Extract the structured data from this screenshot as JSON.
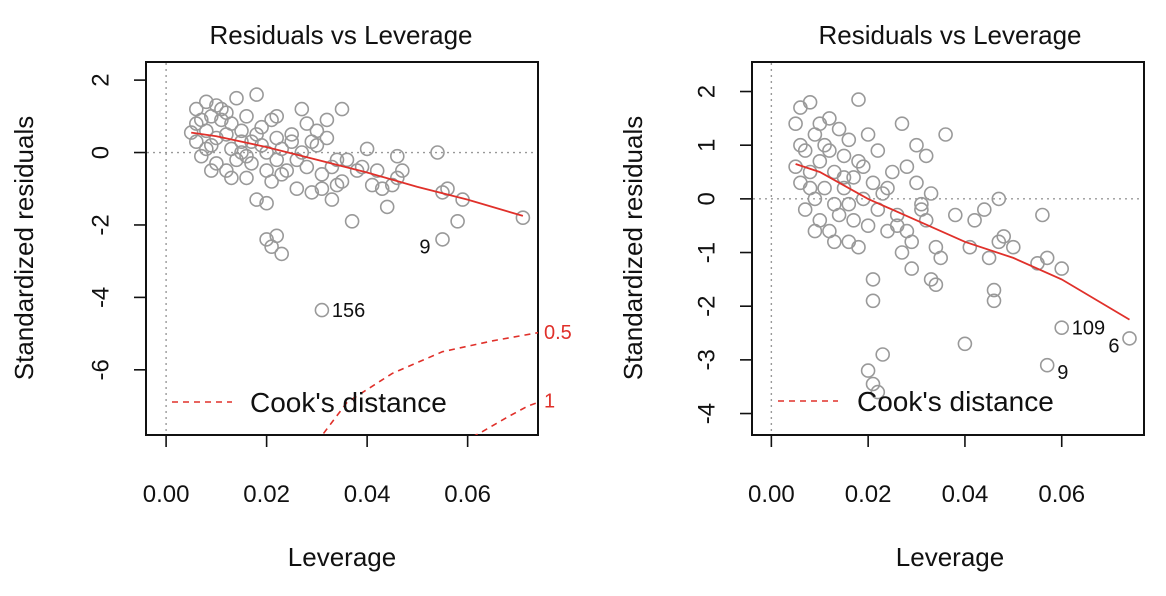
{
  "chart_data": [
    {
      "type": "scatter",
      "title": "Residuals vs Leverage",
      "xlabel": "Leverage",
      "ylabel": "Standardized residuals",
      "xlim": [
        -0.004,
        0.074
      ],
      "ylim": [
        -7.8,
        2.5
      ],
      "xticks": [
        "0.00",
        "0.02",
        "0.04",
        "0.06"
      ],
      "xtick_values": [
        0,
        0.02,
        0.04,
        0.06
      ],
      "yticks": [
        "2",
        "0",
        "-2",
        "-4",
        "-6"
      ],
      "ytick_values": [
        2,
        0,
        -2,
        -4,
        -6
      ],
      "legend": {
        "label": "Cook's distance",
        "position": "bottom-left"
      },
      "colors": {
        "points": "#999999",
        "smooth": "#e0302a",
        "cook": "#e0302a",
        "reference": "#999999",
        "axis": "#111111"
      },
      "points": [
        [
          0.005,
          0.55
        ],
        [
          0.006,
          0.3
        ],
        [
          0.006,
          1.2
        ],
        [
          0.007,
          0.9
        ],
        [
          0.007,
          -0.1
        ],
        [
          0.008,
          1.4
        ],
        [
          0.008,
          0.6
        ],
        [
          0.009,
          0.2
        ],
        [
          0.009,
          1.0
        ],
        [
          0.01,
          0.4
        ],
        [
          0.01,
          -0.3
        ],
        [
          0.011,
          0.9
        ],
        [
          0.011,
          1.2
        ],
        [
          0.012,
          0.5
        ],
        [
          0.012,
          -0.5
        ],
        [
          0.013,
          0.1
        ],
        [
          0.013,
          0.8
        ],
        [
          0.014,
          1.5
        ],
        [
          0.014,
          -0.2
        ],
        [
          0.015,
          0.6
        ],
        [
          0.015,
          0.0
        ],
        [
          0.016,
          -0.7
        ],
        [
          0.016,
          1.0
        ],
        [
          0.017,
          0.3
        ],
        [
          0.017,
          -0.3
        ],
        [
          0.018,
          1.6
        ],
        [
          0.018,
          -1.3
        ],
        [
          0.019,
          0.7
        ],
        [
          0.019,
          0.2
        ],
        [
          0.02,
          -0.5
        ],
        [
          0.02,
          -1.4
        ],
        [
          0.021,
          0.9
        ],
        [
          0.021,
          -0.8
        ],
        [
          0.022,
          0.4
        ],
        [
          0.022,
          -0.2
        ],
        [
          0.023,
          0.1
        ],
        [
          0.024,
          -0.5
        ],
        [
          0.025,
          0.3
        ],
        [
          0.026,
          -1.0
        ],
        [
          0.027,
          1.2
        ],
        [
          0.027,
          0.0
        ],
        [
          0.028,
          -0.4
        ],
        [
          0.028,
          0.8
        ],
        [
          0.029,
          -1.1
        ],
        [
          0.03,
          0.6
        ],
        [
          0.03,
          0.2
        ],
        [
          0.031,
          -0.6
        ],
        [
          0.031,
          -1.0
        ],
        [
          0.032,
          0.4
        ],
        [
          0.033,
          -0.4
        ],
        [
          0.033,
          -1.3
        ],
        [
          0.034,
          -0.2
        ],
        [
          0.035,
          -0.8
        ],
        [
          0.035,
          1.2
        ],
        [
          0.037,
          -1.9
        ],
        [
          0.038,
          -0.5
        ],
        [
          0.04,
          0.1
        ],
        [
          0.041,
          -0.9
        ],
        [
          0.043,
          -1.0
        ],
        [
          0.044,
          -1.5
        ],
        [
          0.046,
          -0.1
        ],
        [
          0.046,
          -0.7
        ],
        [
          0.047,
          -0.5
        ],
        [
          0.054,
          0.0
        ],
        [
          0.055,
          -1.1
        ],
        [
          0.056,
          -1.0
        ],
        [
          0.058,
          -1.9
        ],
        [
          0.059,
          -1.3
        ],
        [
          0.071,
          -1.8
        ],
        [
          0.006,
          0.8
        ],
        [
          0.008,
          0.1
        ],
        [
          0.009,
          -0.5
        ],
        [
          0.01,
          1.3
        ],
        [
          0.012,
          1.1
        ],
        [
          0.013,
          -0.7
        ],
        [
          0.015,
          0.3
        ],
        [
          0.016,
          -0.1
        ],
        [
          0.018,
          0.5
        ],
        [
          0.02,
          0.0
        ],
        [
          0.022,
          1.0
        ],
        [
          0.023,
          -0.6
        ],
        [
          0.025,
          0.5
        ],
        [
          0.026,
          -0.2
        ],
        [
          0.029,
          0.3
        ],
        [
          0.032,
          0.9
        ],
        [
          0.034,
          -0.9
        ],
        [
          0.036,
          -0.2
        ],
        [
          0.039,
          -0.4
        ],
        [
          0.042,
          -0.5
        ],
        [
          0.045,
          -0.9
        ],
        [
          0.02,
          -2.4
        ],
        [
          0.021,
          -2.6
        ],
        [
          0.022,
          -2.3
        ],
        [
          0.023,
          -2.8
        ],
        [
          0.055,
          -2.4
        ],
        [
          0.031,
          -4.35
        ]
      ],
      "labels": [
        {
          "text": "9",
          "x": 0.055,
          "y": -2.4
        },
        {
          "text": "156",
          "x": 0.031,
          "y": -4.35
        }
      ],
      "smooth_line": [
        [
          0.005,
          0.55
        ],
        [
          0.01,
          0.45
        ],
        [
          0.02,
          0.15
        ],
        [
          0.03,
          -0.2
        ],
        [
          0.04,
          -0.55
        ],
        [
          0.05,
          -0.95
        ],
        [
          0.06,
          -1.3
        ],
        [
          0.071,
          -1.75
        ]
      ],
      "cook_contours": [
        {
          "label": "0.5",
          "points": [
            [
              0.03,
              -8.0
            ],
            [
              0.036,
              -6.9
            ],
            [
              0.045,
              -6.1
            ],
            [
              0.055,
              -5.5
            ],
            [
              0.065,
              -5.2
            ],
            [
              0.075,
              -4.95
            ]
          ]
        },
        {
          "label": "1",
          "points": [
            [
              0.059,
              -8.0
            ],
            [
              0.063,
              -7.7
            ],
            [
              0.068,
              -7.3
            ],
            [
              0.072,
              -7.0
            ],
            [
              0.075,
              -6.85
            ]
          ]
        }
      ]
    },
    {
      "type": "scatter",
      "title": "Residuals vs Leverage",
      "xlabel": "Leverage",
      "ylabel": "Standardized residuals",
      "xlim": [
        -0.004,
        0.077
      ],
      "ylim": [
        -4.4,
        2.55
      ],
      "xticks": [
        "0.00",
        "0.02",
        "0.04",
        "0.06"
      ],
      "xtick_values": [
        0,
        0.02,
        0.04,
        0.06
      ],
      "yticks": [
        "2",
        "1",
        "0",
        "-1",
        "-2",
        "-3",
        "-4"
      ],
      "ytick_values": [
        2,
        1,
        0,
        -1,
        -2,
        -3,
        -4
      ],
      "legend": {
        "label": "Cook's distance",
        "position": "bottom-left"
      },
      "colors": {
        "points": "#999999",
        "smooth": "#e0302a",
        "cook": "#e0302a",
        "reference": "#999999",
        "axis": "#111111"
      },
      "points": [
        [
          0.005,
          0.6
        ],
        [
          0.005,
          1.4
        ],
        [
          0.006,
          0.3
        ],
        [
          0.006,
          1.7
        ],
        [
          0.007,
          0.9
        ],
        [
          0.007,
          -0.2
        ],
        [
          0.008,
          1.8
        ],
        [
          0.008,
          0.5
        ],
        [
          0.009,
          0.0
        ],
        [
          0.009,
          1.2
        ],
        [
          0.01,
          0.7
        ],
        [
          0.01,
          -0.4
        ],
        [
          0.011,
          1.0
        ],
        [
          0.011,
          0.2
        ],
        [
          0.012,
          1.5
        ],
        [
          0.012,
          -0.6
        ],
        [
          0.013,
          0.5
        ],
        [
          0.013,
          -0.1
        ],
        [
          0.014,
          1.3
        ],
        [
          0.014,
          -0.3
        ],
        [
          0.015,
          0.8
        ],
        [
          0.015,
          0.2
        ],
        [
          0.016,
          -0.8
        ],
        [
          0.016,
          1.1
        ],
        [
          0.017,
          0.4
        ],
        [
          0.017,
          -0.4
        ],
        [
          0.018,
          1.85
        ],
        [
          0.018,
          -0.9
        ],
        [
          0.019,
          0.6
        ],
        [
          0.019,
          0.0
        ],
        [
          0.02,
          1.2
        ],
        [
          0.02,
          -0.5
        ],
        [
          0.021,
          0.3
        ],
        [
          0.021,
          -1.9
        ],
        [
          0.022,
          0.9
        ],
        [
          0.022,
          -0.2
        ],
        [
          0.023,
          -2.9
        ],
        [
          0.023,
          0.1
        ],
        [
          0.024,
          -0.6
        ],
        [
          0.025,
          0.5
        ],
        [
          0.026,
          -0.3
        ],
        [
          0.027,
          1.4
        ],
        [
          0.027,
          -1.0
        ],
        [
          0.028,
          0.6
        ],
        [
          0.028,
          -0.6
        ],
        [
          0.029,
          -1.3
        ],
        [
          0.03,
          1.0
        ],
        [
          0.03,
          0.3
        ],
        [
          0.031,
          -0.2
        ],
        [
          0.032,
          -0.4
        ],
        [
          0.032,
          0.8
        ],
        [
          0.033,
          -1.5
        ],
        [
          0.033,
          0.1
        ],
        [
          0.034,
          -0.9
        ],
        [
          0.035,
          -1.1
        ],
        [
          0.036,
          1.2
        ],
        [
          0.038,
          -0.3
        ],
        [
          0.04,
          -2.7
        ],
        [
          0.041,
          -0.9
        ],
        [
          0.042,
          -0.4
        ],
        [
          0.044,
          -0.2
        ],
        [
          0.045,
          -1.1
        ],
        [
          0.046,
          -1.7
        ],
        [
          0.046,
          -1.9
        ],
        [
          0.047,
          0.0
        ],
        [
          0.047,
          -0.8
        ],
        [
          0.048,
          -0.7
        ],
        [
          0.05,
          -0.9
        ],
        [
          0.055,
          -1.2
        ],
        [
          0.056,
          -0.3
        ],
        [
          0.057,
          -1.1
        ],
        [
          0.06,
          -1.3
        ],
        [
          0.006,
          1.0
        ],
        [
          0.008,
          0.2
        ],
        [
          0.009,
          -0.6
        ],
        [
          0.01,
          1.4
        ],
        [
          0.012,
          0.9
        ],
        [
          0.013,
          -0.8
        ],
        [
          0.015,
          0.4
        ],
        [
          0.016,
          -0.1
        ],
        [
          0.018,
          0.7
        ],
        [
          0.02,
          -3.2
        ],
        [
          0.021,
          -3.45
        ],
        [
          0.022,
          -3.6
        ],
        [
          0.021,
          -1.5
        ],
        [
          0.024,
          0.2
        ],
        [
          0.026,
          -0.5
        ],
        [
          0.029,
          -0.8
        ],
        [
          0.031,
          -0.1
        ],
        [
          0.034,
          -1.6
        ],
        [
          0.06,
          -2.4
        ],
        [
          0.074,
          -2.6
        ],
        [
          0.057,
          -3.1
        ]
      ],
      "labels": [
        {
          "text": "109",
          "x": 0.06,
          "y": -2.4
        },
        {
          "text": "6",
          "x": 0.074,
          "y": -2.6
        },
        {
          "text": "9",
          "x": 0.057,
          "y": -3.1
        }
      ],
      "smooth_line": [
        [
          0.005,
          0.65
        ],
        [
          0.01,
          0.5
        ],
        [
          0.02,
          0.0
        ],
        [
          0.03,
          -0.4
        ],
        [
          0.04,
          -0.8
        ],
        [
          0.05,
          -1.1
        ],
        [
          0.06,
          -1.5
        ],
        [
          0.074,
          -2.25
        ]
      ],
      "cook_contours": []
    }
  ]
}
